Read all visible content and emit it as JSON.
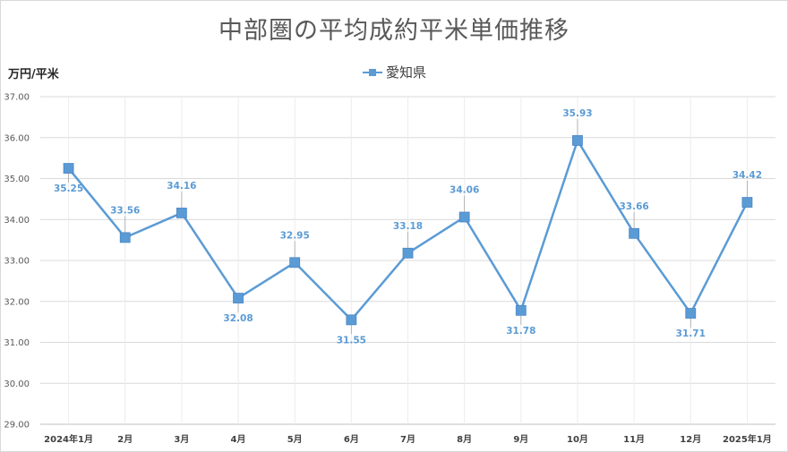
{
  "chart_data": {
    "type": "line",
    "title": "中部圏の平均成約平米単価推移",
    "ylabel": "万円/平米",
    "xlabel": "",
    "legend_position": "top",
    "grid": true,
    "categories": [
      "2024年1月",
      "2月",
      "3月",
      "4月",
      "5月",
      "6月",
      "7月",
      "8月",
      "9月",
      "10月",
      "11月",
      "12月",
      "2025年1月"
    ],
    "series": [
      {
        "name": "愛知県",
        "color": "#5b9bd5",
        "values": [
          35.25,
          33.56,
          34.16,
          32.08,
          32.95,
          31.55,
          33.18,
          34.06,
          31.78,
          35.93,
          33.66,
          31.71,
          34.42
        ]
      }
    ],
    "ylim": [
      29,
      37
    ],
    "yticks": [
      "29.00",
      "30.00",
      "31.00",
      "32.00",
      "33.00",
      "34.00",
      "35.00",
      "36.00",
      "37.00"
    ],
    "data_labels": [
      "35.25",
      "33.56",
      "34.16",
      "32.08",
      "32.95",
      "31.55",
      "33.18",
      "34.06",
      "31.78",
      "35.93",
      "33.66",
      "31.71",
      "34.42"
    ],
    "label_placement": [
      "below",
      "above",
      "above",
      "below",
      "above",
      "below",
      "above",
      "above",
      "below",
      "above",
      "above",
      "below",
      "above"
    ]
  }
}
